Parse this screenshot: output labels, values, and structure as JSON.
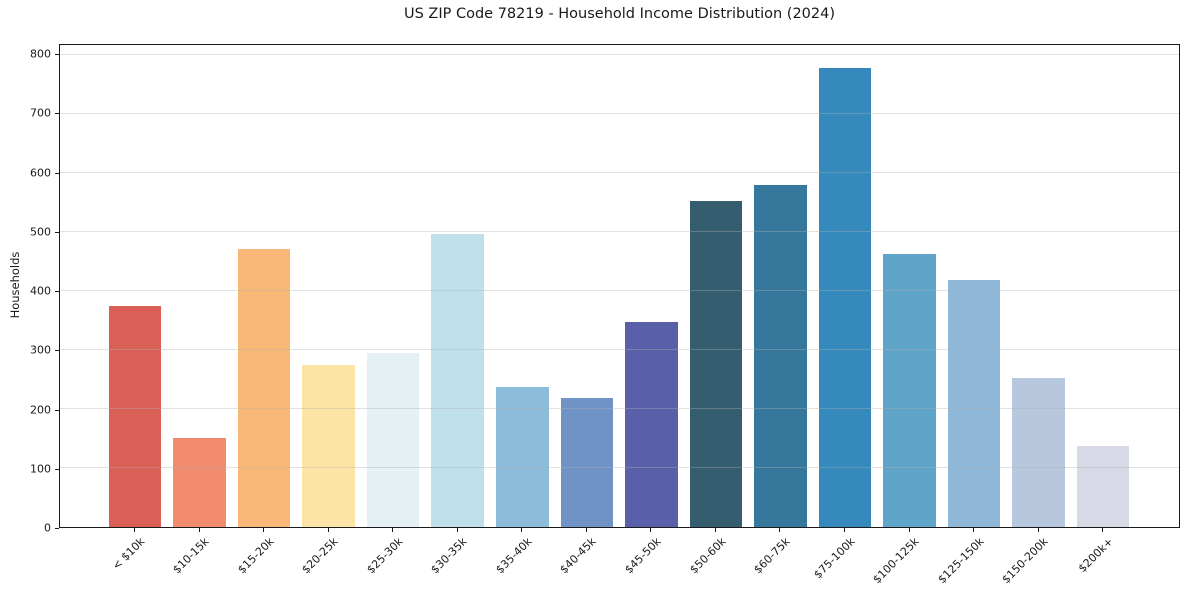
{
  "chart_data": {
    "type": "bar",
    "title": "US ZIP Code 78219 - Household Income Distribution (2024)",
    "xlabel": "",
    "ylabel": "Households",
    "categories": [
      "< $10k",
      "$10-15k",
      "$15-20k",
      "$20-25k",
      "$25-30k",
      "$30-35k",
      "$35-40k",
      "$40-45k",
      "$45-50k",
      "$50-60k",
      "$60-75k",
      "$75-100k",
      "$100-125k",
      "$125-150k",
      "$150-200k",
      "$200k+"
    ],
    "values": [
      374,
      151,
      471,
      274,
      295,
      497,
      238,
      218,
      347,
      552,
      579,
      778,
      462,
      418,
      252,
      137
    ],
    "bar_colors": [
      "#d95f57",
      "#f28a6d",
      "#fab878",
      "#fce4a6",
      "#e4f0f4",
      "#bfdfeb",
      "#8dbbda",
      "#6e93c4",
      "#5a5fa9",
      "#345d70",
      "#36789c",
      "#3689bd",
      "#5fa4c9",
      "#8fb7d8",
      "#b7c7de",
      "#d7d9e6"
    ],
    "ylim": [
      0,
      817
    ],
    "yticks": [
      0,
      100,
      200,
      300,
      400,
      500,
      600,
      700,
      800
    ],
    "ytick_labels": [
      "0",
      "100",
      "200",
      "300",
      "400",
      "500",
      "600",
      "700",
      "800"
    ],
    "grid": "horizontal",
    "legend": "none",
    "colors": {
      "background": "#ffffff",
      "axis": "#1a1a1a",
      "gridline": "#b0b0b0",
      "text": "#1a1a1a"
    }
  }
}
